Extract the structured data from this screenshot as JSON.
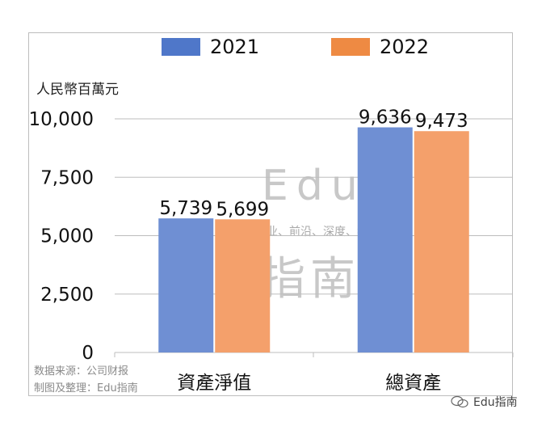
{
  "colors": {
    "s2021": "#6f8fd3",
    "s2022": "#f4a06b",
    "legend2021": "#4f77c9",
    "legend2022": "#ee8a43",
    "grid": "#bdbdbd"
  },
  "unit_label": "人民幣百萬元",
  "chart_data": {
    "type": "bar",
    "categories": [
      "資產淨值",
      "總資產"
    ],
    "series": [
      {
        "name": "2021",
        "values": [
          5739,
          9636
        ],
        "labels": [
          "5,739",
          "9,636"
        ]
      },
      {
        "name": "2022",
        "values": [
          5699,
          9473
        ],
        "labels": [
          "5,699",
          "9,473"
        ]
      }
    ],
    "ylim": [
      0,
      10000
    ],
    "yticks": [
      0,
      2500,
      5000,
      7500,
      10000
    ],
    "ytick_labels": [
      "0",
      "2,500",
      "5,000",
      "7,500",
      "10,000"
    ],
    "legend_position": "top",
    "grid": true
  },
  "source_lines": [
    "数据来源：公司财报",
    "制图及整理：Edu指南"
  ],
  "watermark": {
    "main": "Edu",
    "tagline": "教育行业、前沿、深度、独家",
    "cn": "指南"
  },
  "brand": "Edu指南"
}
